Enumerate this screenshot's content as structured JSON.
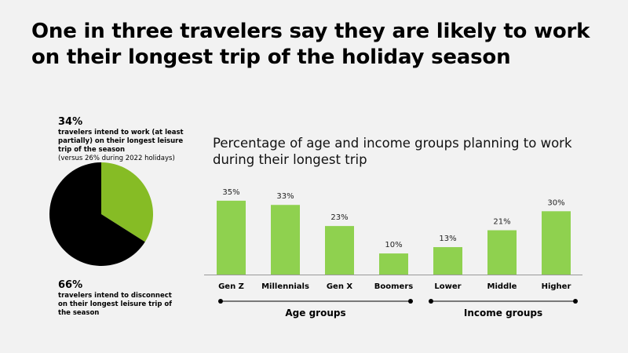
{
  "title": "One in three travelers say they are likely to work on their longest trip of the holiday season",
  "stat_work": {
    "value": "34%",
    "text": "travelers intend to work (at least partially) on their longest leisure trip of the season",
    "note": "(versus 26% during 2022 holidays)"
  },
  "stat_disconnect": {
    "value": "66%",
    "text": "travelers intend to disconnect on their longest leisure trip of the season"
  },
  "colors": {
    "pie_work": "#86bc25",
    "pie_disconnect": "#000000",
    "bars": "#8fd14f",
    "background": "#f2f2f2"
  },
  "chart_data": [
    {
      "type": "pie",
      "slices": [
        {
          "label": "travelers intend to work",
          "value": 34
        },
        {
          "label": "travelers intend to disconnect",
          "value": 66
        }
      ]
    },
    {
      "type": "bar",
      "title": "Percentage of age and income groups planning to work during their longest trip",
      "categories": [
        "Gen Z",
        "Millennials",
        "Gen X",
        "Boomers",
        "Lower",
        "Middle",
        "Higher"
      ],
      "values": [
        35,
        33,
        23,
        10,
        13,
        21,
        30
      ],
      "data_labels": [
        "35%",
        "33%",
        "23%",
        "10%",
        "13%",
        "21%",
        "30%"
      ],
      "groups": [
        {
          "label": "Age groups",
          "categories": [
            "Gen Z",
            "Millennials",
            "Gen X",
            "Boomers"
          ]
        },
        {
          "label": "Income groups",
          "categories": [
            "Lower",
            "Middle",
            "Higher"
          ]
        }
      ],
      "grid": false
    }
  ]
}
